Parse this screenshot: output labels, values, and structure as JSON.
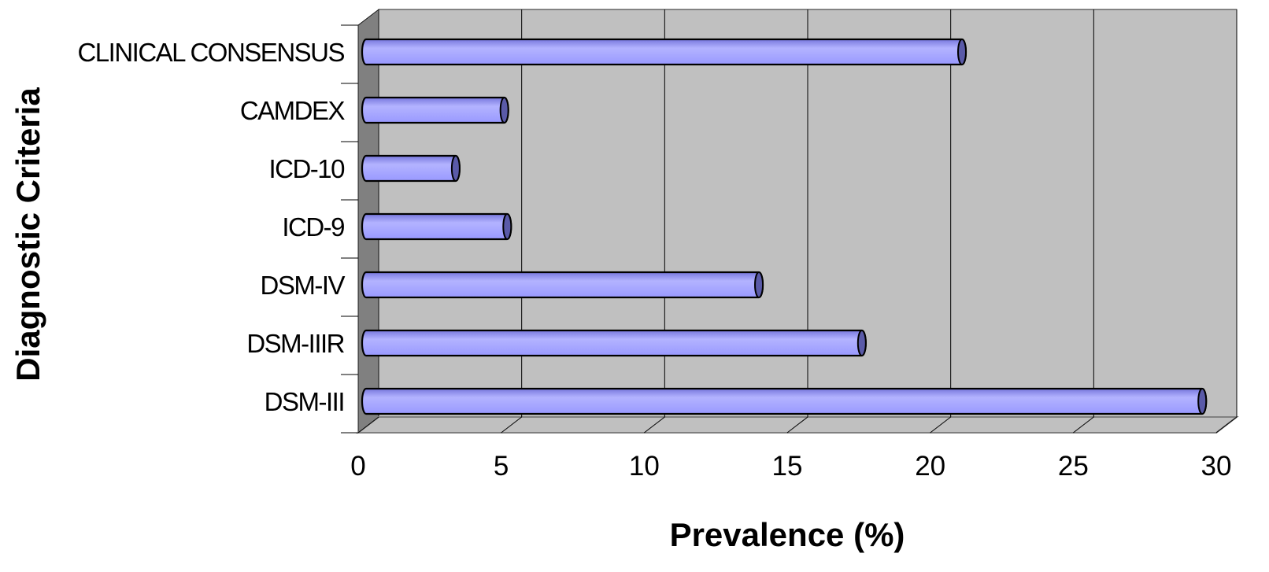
{
  "chart_data": {
    "type": "bar",
    "orientation": "horizontal",
    "style": "3d-cylinder",
    "title": "",
    "xlabel": "Prevalence (%)",
    "ylabel": "Diagnostic Criteria",
    "categories": [
      "CLINICAL CONSENSUS",
      "CAMDEX",
      "ICD-10",
      "ICD-9",
      "DSM-IV",
      "DSM-IIIR",
      "DSM-III"
    ],
    "values": [
      21,
      5,
      3.3,
      5.1,
      13.9,
      17.5,
      29.4
    ],
    "xlim": [
      0,
      30
    ],
    "xticks": [
      "0",
      "5",
      "10",
      "15",
      "20",
      "25",
      "30"
    ],
    "grid": true,
    "legend": "none",
    "colors": {
      "bar_fill": "#9999ff",
      "bar_highlight": "#b3b3ff",
      "bar_shade": "#7777dd",
      "bar_cap": "#5a5aa8",
      "plot_wall": "#c0c0c0",
      "side_wall": "#808080",
      "floor": "#c0c0c0",
      "gridline": "#000000"
    }
  }
}
